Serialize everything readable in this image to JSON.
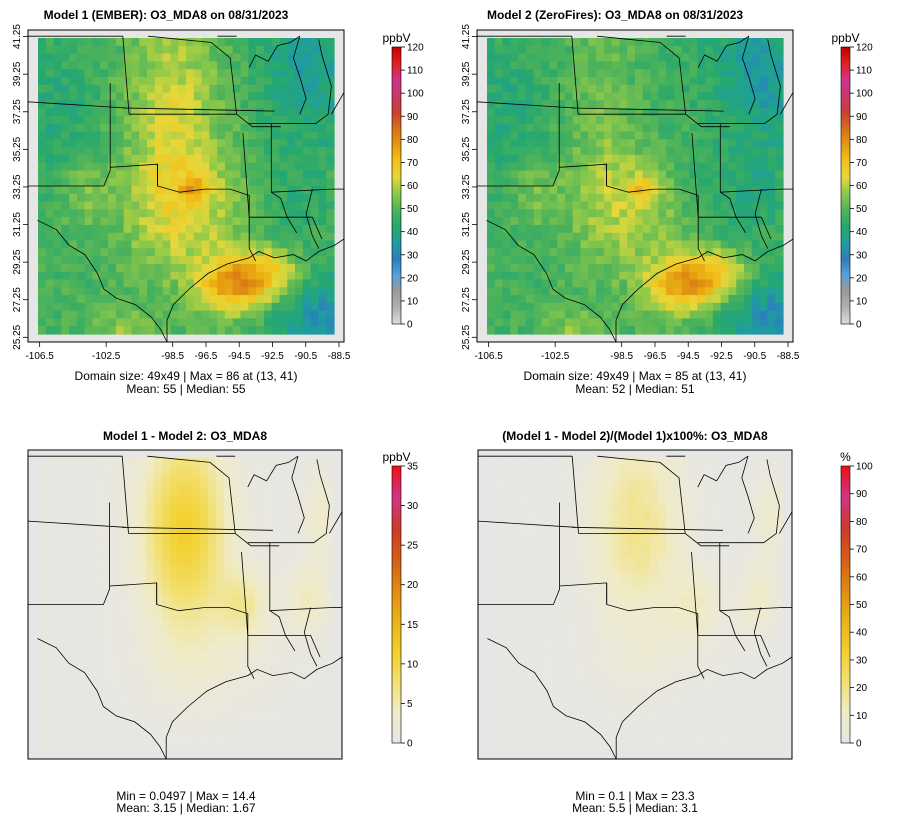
{
  "colors": {
    "background": "#ffffff",
    "frame": "#000000",
    "outside_map": "#e6e6e6",
    "abs_ramp": [
      "#dcdcdc",
      "#b2b2b2",
      "#9a9a9a",
      "#5aa0d8",
      "#2b7fbf",
      "#1f9e9e",
      "#27a86e",
      "#4fb35a",
      "#8cc84a",
      "#e6d83a",
      "#f2c21a",
      "#e39a10",
      "#d7701a",
      "#c93f32",
      "#c43a6b",
      "#d0338a",
      "#e0201e",
      "#c10000"
    ],
    "diff_ramp": [
      "#e6e6e6",
      "#f0ebc8",
      "#f2e070",
      "#f2cf2a",
      "#eab21a",
      "#e08a12",
      "#d45c18",
      "#cc3a2a",
      "#d0348a",
      "#ee1111"
    ]
  },
  "chart_data": [
    {
      "type": "heatmap",
      "id": "panel-model1",
      "title": "Model 1 (EMBER): O3_MDA8 on 08/31/2023",
      "unit": "ppbV",
      "scale": "abs",
      "xticks": [
        "-106.5",
        "-102.5",
        "-98.5",
        "-96.5",
        "-94.5",
        "-92.5",
        "-90.5",
        "-88.5"
      ],
      "yticks": [
        "25.25",
        "27.25",
        "29.25",
        "31.25",
        "33.25",
        "35.25",
        "37.25",
        "39.25",
        "41.25"
      ],
      "legend_ticks": [
        "0",
        "10",
        "20",
        "30",
        "40",
        "50",
        "60",
        "70",
        "80",
        "90",
        "100",
        "110",
        "120"
      ],
      "legend_range": [
        0,
        120
      ],
      "stats_line1": "Domain size: 49x49 | Max = 86 at (13, 41)",
      "stats_line2": "Mean: 55 |  Median: 55",
      "domain_size": "49x49",
      "max": 86,
      "max_location": "(13, 41)",
      "mean": 55,
      "median": 55
    },
    {
      "type": "heatmap",
      "id": "panel-model2",
      "title": "Model 2 (ZeroFires): O3_MDA8 on 08/31/2023",
      "unit": "ppbV",
      "scale": "abs",
      "xticks": [
        "-106.5",
        "-102.5",
        "-98.5",
        "-96.5",
        "-94.5",
        "-92.5",
        "-90.5",
        "-88.5"
      ],
      "yticks": [
        "25.25",
        "27.25",
        "29.25",
        "31.25",
        "33.25",
        "35.25",
        "37.25",
        "39.25",
        "41.25"
      ],
      "legend_ticks": [
        "0",
        "10",
        "20",
        "30",
        "40",
        "50",
        "60",
        "70",
        "80",
        "90",
        "100",
        "110",
        "120"
      ],
      "legend_range": [
        0,
        120
      ],
      "stats_line1": "Domain size: 49x49 | Max = 85 at (13, 41)",
      "stats_line2": "Mean: 52 |  Median: 51",
      "domain_size": "49x49",
      "max": 85,
      "max_location": "(13, 41)",
      "mean": 52,
      "median": 51
    },
    {
      "type": "heatmap",
      "id": "panel-diff",
      "title": "Model 1 - Model 2: O3_MDA8",
      "unit": "ppbV",
      "scale": "diff",
      "legend_ticks": [
        "0",
        "5",
        "10",
        "15",
        "20",
        "25",
        "30",
        "35"
      ],
      "legend_range": [
        0,
        35
      ],
      "stats_line1": "Min = 0.0497 | Max = 14.4",
      "stats_line2": "Mean: 3.15 |  Median: 1.67",
      "min": 0.0497,
      "max": 14.4,
      "mean": 3.15,
      "median": 1.67
    },
    {
      "type": "heatmap",
      "id": "panel-pct",
      "title": "(Model 1 - Model 2)/(Model 1)x100%: O3_MDA8",
      "unit": "%",
      "scale": "pct",
      "legend_ticks": [
        "0",
        "10",
        "20",
        "30",
        "40",
        "50",
        "60",
        "70",
        "80",
        "90",
        "100"
      ],
      "legend_range": [
        0,
        100
      ],
      "stats_line1": "Min = 0.1 | Max = 23.3",
      "stats_line2": "Mean: 5.5 |  Median: 3.1",
      "min": 0.1,
      "max": 23.3,
      "mean": 5.5,
      "median": 3.1
    }
  ]
}
